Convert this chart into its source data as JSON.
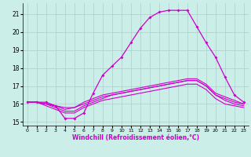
{
  "xlabel": "Windchill (Refroidissement éolien,°C)",
  "bg_color": "#cceee8",
  "grid_color": "#aacccc",
  "line_color": "#cc00cc",
  "xlim": [
    -0.5,
    23.5
  ],
  "ylim": [
    14.8,
    21.6
  ],
  "yticks": [
    15,
    16,
    17,
    18,
    19,
    20,
    21
  ],
  "xticks": [
    0,
    1,
    2,
    3,
    4,
    5,
    6,
    7,
    8,
    9,
    10,
    11,
    12,
    13,
    14,
    15,
    16,
    17,
    18,
    19,
    20,
    21,
    22,
    23
  ],
  "main_x": [
    0,
    1,
    2,
    3,
    4,
    5,
    6,
    7,
    8,
    9,
    10,
    11,
    12,
    13,
    14,
    15,
    16,
    17,
    18,
    19,
    20,
    21,
    22,
    23
  ],
  "main_y": [
    16.1,
    16.1,
    16.1,
    15.9,
    15.2,
    15.2,
    15.5,
    16.6,
    17.6,
    18.1,
    18.6,
    19.4,
    20.2,
    20.8,
    21.1,
    21.2,
    21.2,
    21.2,
    20.3,
    19.4,
    18.6,
    17.5,
    16.5,
    16.1
  ],
  "line2_x": [
    0,
    1,
    2,
    3,
    4,
    5,
    6,
    7,
    8,
    9,
    10,
    11,
    12,
    13,
    14,
    15,
    16,
    17,
    18,
    19,
    20,
    21,
    22,
    23
  ],
  "line2_y": [
    16.1,
    16.1,
    16.0,
    15.9,
    15.8,
    15.8,
    16.0,
    16.2,
    16.4,
    16.5,
    16.6,
    16.7,
    16.8,
    16.9,
    17.0,
    17.1,
    17.2,
    17.3,
    17.3,
    17.0,
    16.5,
    16.3,
    16.1,
    16.0
  ],
  "line3_x": [
    0,
    1,
    2,
    3,
    4,
    5,
    6,
    7,
    8,
    9,
    10,
    11,
    12,
    13,
    14,
    15,
    16,
    17,
    18,
    19,
    20,
    21,
    22,
    23
  ],
  "line3_y": [
    16.1,
    16.1,
    16.0,
    15.9,
    15.7,
    15.8,
    16.1,
    16.3,
    16.5,
    16.6,
    16.7,
    16.8,
    16.9,
    17.0,
    17.1,
    17.2,
    17.3,
    17.4,
    17.4,
    17.1,
    16.6,
    16.4,
    16.2,
    16.0
  ],
  "line4_x": [
    0,
    1,
    2,
    3,
    4,
    5,
    6,
    7,
    8,
    9,
    10,
    11,
    12,
    13,
    14,
    15,
    16,
    17,
    18,
    19,
    20,
    21,
    22,
    23
  ],
  "line4_y": [
    16.1,
    16.1,
    16.0,
    15.8,
    15.6,
    15.6,
    15.9,
    16.1,
    16.3,
    16.5,
    16.6,
    16.7,
    16.8,
    16.9,
    17.0,
    17.1,
    17.2,
    17.3,
    17.3,
    17.0,
    16.5,
    16.2,
    16.0,
    15.9
  ],
  "line5_x": [
    0,
    1,
    2,
    3,
    4,
    5,
    6,
    7,
    8,
    9,
    10,
    11,
    12,
    13,
    14,
    15,
    16,
    17,
    18,
    19,
    20,
    21,
    22,
    23
  ],
  "line5_y": [
    16.1,
    16.1,
    15.9,
    15.7,
    15.5,
    15.5,
    15.8,
    16.0,
    16.2,
    16.3,
    16.4,
    16.5,
    16.6,
    16.7,
    16.8,
    16.9,
    17.0,
    17.1,
    17.1,
    16.8,
    16.3,
    16.0,
    15.9,
    15.8
  ]
}
